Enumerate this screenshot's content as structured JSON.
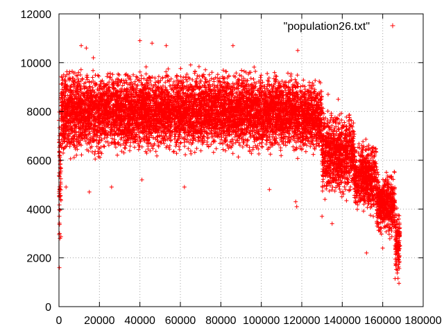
{
  "chart_data": {
    "type": "scatter",
    "title": "",
    "xlabel": "",
    "ylabel": "",
    "xlim": [
      0,
      180000
    ],
    "ylim": [
      0,
      12000
    ],
    "xticks": [
      0,
      20000,
      40000,
      60000,
      80000,
      100000,
      120000,
      140000,
      160000,
      180000
    ],
    "yticks": [
      0,
      2000,
      4000,
      6000,
      8000,
      10000,
      12000
    ],
    "grid": true,
    "legend_position": "top-right",
    "marker": "+",
    "color": "#ff0000",
    "series": [
      {
        "name": "\"population26.txt\"",
        "segments": [
          {
            "x_from": 0,
            "x_to": 1000,
            "y_low": 1600,
            "y_high": 9800
          },
          {
            "x_from": 1000,
            "x_to": 20000,
            "y_low": 5800,
            "y_high": 10100
          },
          {
            "x_from": 20000,
            "x_to": 40000,
            "y_low": 6000,
            "y_high": 10000
          },
          {
            "x_from": 40000,
            "x_to": 60000,
            "y_low": 6000,
            "y_high": 10000
          },
          {
            "x_from": 60000,
            "x_to": 80000,
            "y_low": 6000,
            "y_high": 10000
          },
          {
            "x_from": 80000,
            "x_to": 100000,
            "y_low": 6000,
            "y_high": 10000
          },
          {
            "x_from": 100000,
            "x_to": 120000,
            "y_low": 6000,
            "y_high": 9900
          },
          {
            "x_from": 120000,
            "x_to": 130000,
            "y_low": 6000,
            "y_high": 9500
          },
          {
            "x_from": 130000,
            "x_to": 146000,
            "y_low": 4200,
            "y_high": 8300
          },
          {
            "x_from": 146000,
            "x_to": 157000,
            "y_low": 3500,
            "y_high": 7000
          },
          {
            "x_from": 157000,
            "x_to": 166000,
            "y_low": 2600,
            "y_high": 5800
          },
          {
            "x_from": 166000,
            "x_to": 168500,
            "y_low": 700,
            "y_high": 4500
          }
        ],
        "outliers": [
          [
            11000,
            10700
          ],
          [
            13500,
            10600
          ],
          [
            17000,
            10200
          ],
          [
            40000,
            10900
          ],
          [
            46000,
            10800
          ],
          [
            53000,
            10700
          ],
          [
            86000,
            10700
          ],
          [
            118000,
            10500
          ],
          [
            500,
            2800
          ],
          [
            300,
            3000
          ],
          [
            200,
            1600
          ],
          [
            3500,
            4900
          ],
          [
            15000,
            4700
          ],
          [
            26000,
            4900
          ],
          [
            41000,
            5200
          ],
          [
            62000,
            4900
          ],
          [
            104000,
            4800
          ],
          [
            117000,
            4300
          ],
          [
            117500,
            4100
          ],
          [
            135000,
            3400
          ],
          [
            152000,
            2200
          ],
          [
            160000,
            2400
          ],
          [
            133000,
            8700
          ],
          [
            138000,
            8500
          ],
          [
            130000,
            3700
          ]
        ]
      }
    ]
  }
}
